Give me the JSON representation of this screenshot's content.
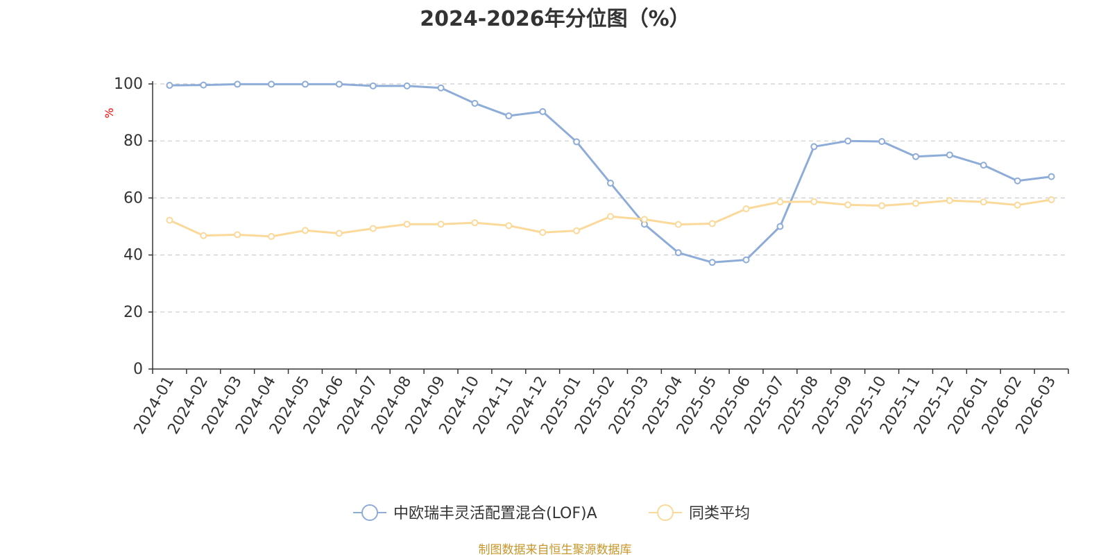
{
  "chart_data": {
    "type": "line",
    "title": "2024-2026年分位图（%）",
    "ylabel": "%",
    "xlabel": "",
    "ylim": [
      0,
      100
    ],
    "yticks": [
      0,
      20,
      40,
      60,
      80,
      100
    ],
    "grid": true,
    "legend": "bottom",
    "categories": [
      "2024-01",
      "2024-02",
      "2024-03",
      "2024-04",
      "2024-05",
      "2024-06",
      "2024-07",
      "2024-08",
      "2024-09",
      "2024-10",
      "2024-11",
      "2024-12",
      "2025-01",
      "2025-02",
      "2025-03",
      "2025-04",
      "2025-05",
      "2025-06",
      "2025-07",
      "2025-08",
      "2025-09",
      "2025-10",
      "2025-11",
      "2025-12",
      "2026-01",
      "2026-02",
      "2026-03"
    ],
    "series": [
      {
        "name": "中欧瑞丰灵活配置混合(LOF)A",
        "color": "#8eacd8",
        "values": [
          99.5,
          99.6,
          99.9,
          99.9,
          99.9,
          99.9,
          99.3,
          99.3,
          98.6,
          93.2,
          88.8,
          90.3,
          79.7,
          65.2,
          50.8,
          40.8,
          37.4,
          38.3,
          50.0,
          78.0,
          80.0,
          79.8,
          74.5,
          75.1,
          71.5,
          66.0,
          67.5
        ]
      },
      {
        "name": "同类平均",
        "color": "#fbd99a",
        "values": [
          52.2,
          46.8,
          47.1,
          46.5,
          48.6,
          47.6,
          49.3,
          50.8,
          50.8,
          51.3,
          50.3,
          47.9,
          48.5,
          53.5,
          52.5,
          50.7,
          51.0,
          56.2,
          58.6,
          58.7,
          57.6,
          57.3,
          58.1,
          59.1,
          58.6,
          57.5,
          59.4
        ]
      }
    ]
  },
  "source_note": "制图数据来自恒生聚源数据库",
  "colors": {
    "axis": "#333333",
    "grid": "#cccccc",
    "ylabel": "#ff0000",
    "source": "#c8962a"
  }
}
